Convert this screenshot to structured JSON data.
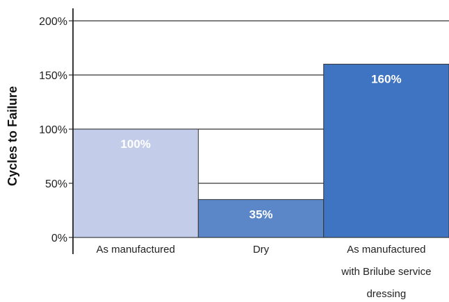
{
  "chart_data": {
    "type": "bar",
    "title": "",
    "xlabel": "",
    "ylabel": "Cycles to Failure",
    "ylim": [
      0,
      200
    ],
    "yticks": [
      0,
      50,
      100,
      150,
      200
    ],
    "ytick_labels": [
      "0%",
      "50%",
      "100%",
      "150%",
      "200%"
    ],
    "grid": true,
    "categories": [
      [
        "As manufactured"
      ],
      [
        "Dry"
      ],
      [
        "As manufactured",
        "with Brilube service",
        "dressing"
      ]
    ],
    "values": [
      100,
      35,
      160
    ],
    "data_labels": [
      "100%",
      "35%",
      "160%"
    ],
    "bar_colors": [
      "#c3cde9",
      "#5b86c8",
      "#3e74c2"
    ]
  }
}
